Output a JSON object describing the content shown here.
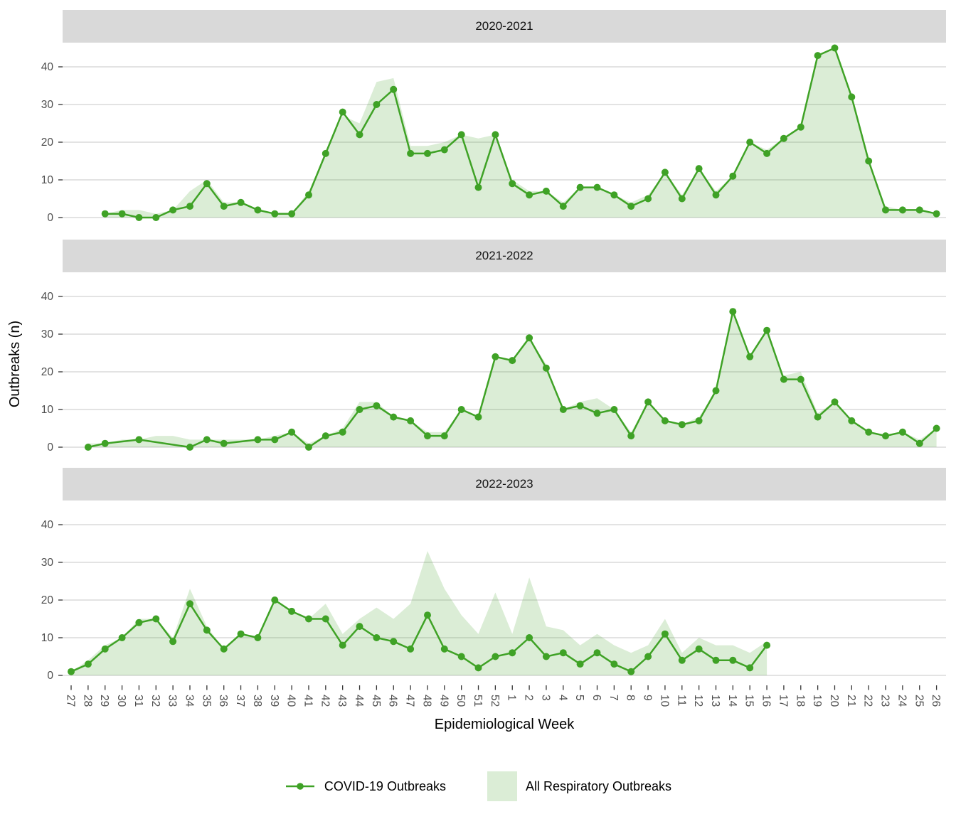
{
  "axes": {
    "y": {
      "title": "Outbreaks (n)",
      "ticks": [
        0,
        10,
        20,
        30,
        40
      ]
    },
    "x": {
      "title": "Epidemiological Week"
    }
  },
  "legend": {
    "items": [
      {
        "label": "COVID-19 Outbreaks",
        "key": "line-point"
      },
      {
        "label": "All Respiratory Outbreaks",
        "key": "filled-area"
      }
    ],
    "position": "bottom"
  },
  "colors": {
    "line": "#3FA226",
    "point": "#3FA226",
    "area_fill": "rgba(63,162,38,0.19)",
    "strip_bg": "#D9D9D9",
    "grid": "#DADADA",
    "axis_text": "#4D4D4D",
    "tick_mark": "#333333",
    "title_text": "#000000"
  },
  "chart_data": {
    "type": "line",
    "subtype": "faceted line + area (3 stacked season panels)",
    "title": "",
    "xlabel": "Epidemiological Week",
    "ylabel": "Outbreaks (n)",
    "ylim": [
      0,
      46
    ],
    "grid": "horizontal major gridlines at 0,10,20,30,40 only",
    "legend_position": "bottom",
    "categories": [
      "27",
      "28",
      "29",
      "30",
      "31",
      "32",
      "33",
      "34",
      "35",
      "36",
      "37",
      "38",
      "39",
      "40",
      "41",
      "42",
      "43",
      "44",
      "45",
      "46",
      "47",
      "48",
      "49",
      "50",
      "51",
      "52",
      "1",
      "2",
      "3",
      "4",
      "5",
      "6",
      "7",
      "8",
      "9",
      "10",
      "11",
      "12",
      "13",
      "14",
      "15",
      "16",
      "17",
      "18",
      "19",
      "20",
      "21",
      "22",
      "23",
      "24",
      "25",
      "26"
    ],
    "series_meta": [
      {
        "name": "COVID-19 Outbreaks",
        "type": "line+points",
        "color": "#3FA226"
      },
      {
        "name": "All Respiratory Outbreaks",
        "type": "area",
        "color": "rgba(63,162,38,0.19)"
      }
    ],
    "facets": [
      {
        "title": "2020-2021",
        "series": {
          "covid": [
            null,
            null,
            1,
            1,
            0,
            0,
            2,
            3,
            9,
            3,
            4,
            2,
            1,
            1,
            6,
            17,
            28,
            22,
            30,
            34,
            17,
            17,
            18,
            22,
            8,
            22,
            9,
            6,
            7,
            3,
            8,
            8,
            6,
            3,
            5,
            12,
            5,
            13,
            6,
            11,
            20,
            17,
            21,
            24,
            43,
            45,
            32,
            15,
            2,
            2,
            2,
            1
          ],
          "all_respiratory": [
            null,
            null,
            1,
            2,
            2,
            1,
            2,
            7,
            10,
            4,
            4,
            2,
            1,
            1,
            7,
            17,
            27,
            25,
            36,
            37,
            19,
            19,
            20,
            22,
            21,
            22,
            10,
            7,
            7,
            4,
            8,
            8,
            6,
            4,
            6,
            12,
            6,
            13,
            7,
            11,
            20,
            18,
            21,
            24,
            43,
            45,
            32,
            15,
            3,
            2,
            2,
            1
          ]
        }
      },
      {
        "title": "2021-2022",
        "series": {
          "covid": [
            null,
            0,
            1,
            null,
            2,
            null,
            null,
            0,
            2,
            1,
            null,
            2,
            2,
            4,
            0,
            3,
            4,
            10,
            11,
            8,
            7,
            3,
            3,
            10,
            8,
            24,
            23,
            29,
            21,
            10,
            11,
            9,
            10,
            3,
            12,
            7,
            6,
            7,
            15,
            36,
            24,
            31,
            18,
            18,
            8,
            12,
            7,
            4,
            3,
            4,
            1,
            5
          ],
          "all_respiratory": [
            null,
            1,
            1,
            2,
            2,
            3,
            3,
            2,
            2,
            2,
            2,
            2,
            3,
            4,
            1,
            3,
            5,
            12,
            12,
            8,
            7,
            4,
            4,
            10,
            8,
            24,
            23,
            29,
            22,
            10,
            12,
            13,
            10,
            4,
            12,
            7,
            6,
            8,
            15,
            36,
            24,
            31,
            19,
            20,
            9,
            12,
            7,
            4,
            3,
            4,
            2,
            5
          ]
        }
      },
      {
        "title": "2022-2023",
        "series": {
          "covid": [
            1,
            3,
            7,
            10,
            14,
            15,
            9,
            19,
            12,
            7,
            11,
            10,
            20,
            17,
            15,
            15,
            8,
            13,
            10,
            9,
            7,
            16,
            7,
            5,
            2,
            5,
            6,
            10,
            5,
            6,
            3,
            6,
            3,
            1,
            5,
            11,
            4,
            7,
            4,
            4,
            2,
            8,
            null,
            null,
            null,
            null,
            null,
            null,
            null,
            null,
            null,
            null
          ],
          "all_respiratory": [
            1,
            4,
            8,
            10,
            15,
            15,
            10,
            23,
            13,
            7,
            11,
            10,
            20,
            17,
            15,
            19,
            11,
            15,
            18,
            15,
            19,
            33,
            23,
            16,
            11,
            22,
            11,
            26,
            13,
            12,
            8,
            11,
            8,
            6,
            8,
            15,
            6,
            10,
            8,
            8,
            6,
            9,
            null,
            null,
            null,
            null,
            null,
            null,
            null,
            null,
            null,
            null
          ]
        }
      }
    ]
  }
}
